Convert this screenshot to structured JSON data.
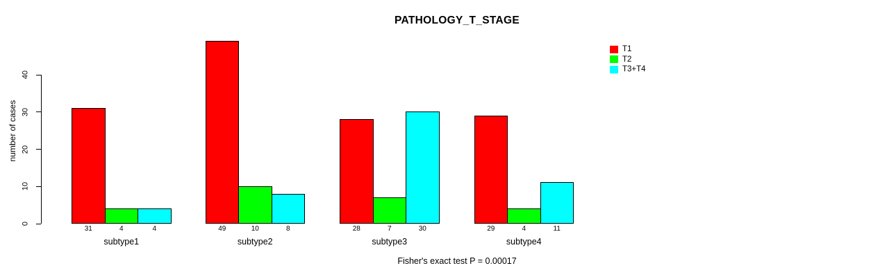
{
  "chart_data": {
    "type": "bar",
    "title": "PATHOLOGY_T_STAGE",
    "ylabel": "number of cases",
    "xlabel": "",
    "categories": [
      "subtype1",
      "subtype2",
      "subtype3",
      "subtype4"
    ],
    "series": [
      {
        "name": "T1",
        "color": "#ff0000",
        "values": [
          31,
          49,
          28,
          29
        ]
      },
      {
        "name": "T2",
        "color": "#00ff00",
        "values": [
          4,
          10,
          7,
          4
        ]
      },
      {
        "name": "T3+T4",
        "color": "#00ffff",
        "values": [
          4,
          8,
          30,
          11
        ]
      }
    ],
    "yticks": [
      0,
      10,
      20,
      30,
      40
    ],
    "ylim": [
      0,
      49
    ],
    "grid": false,
    "legend_position": "topright",
    "bar_value_labels_shown": true,
    "annotation": "Fisher's exact test P = 0.00017"
  },
  "colors": {
    "axis": "#000000",
    "bar_border": "#000000",
    "background": "#ffffff"
  }
}
